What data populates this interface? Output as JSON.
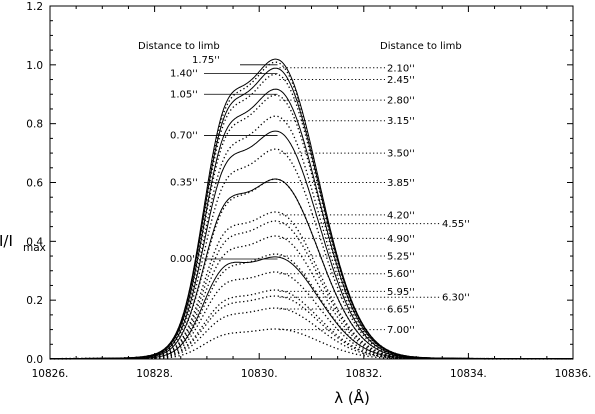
{
  "chart_data": {
    "type": "line",
    "title": "",
    "xlabel": "λ (Å)",
    "ylabel": "I/I",
    "ylabel_sub": "max",
    "xlim": [
      10826,
      10836
    ],
    "ylim": [
      0,
      1.2
    ],
    "xticks": [
      10826,
      10828,
      10830,
      10832,
      10834,
      10836
    ],
    "xtick_labels": [
      "10826.",
      "10828.",
      "10830.",
      "10832.",
      "10834.",
      "10836."
    ],
    "yticks": [
      0,
      0.2,
      0.4,
      0.6,
      0.8,
      1.0,
      1.2
    ],
    "ytick_labels": [
      "0.0",
      "0.2",
      "0.4",
      "0.6",
      "0.8",
      "1.0",
      "1.2"
    ],
    "grid": false,
    "legend": "none",
    "line_center": 10830.35,
    "line_width": 0.78,
    "blue_center": 10829.25,
    "blue_width": 0.38,
    "group_headers": [
      "Distance to limb",
      "Distance to limb"
    ],
    "series_solid": [
      {
        "label": "0.00''",
        "peak": 0.34,
        "blue_peak": 0.17
      },
      {
        "label": "0.35''",
        "peak": 0.6,
        "blue_peak": 0.27
      },
      {
        "label": "0.70''",
        "peak": 0.76,
        "blue_peak": 0.33
      },
      {
        "label": "1.05''",
        "peak": 0.9,
        "blue_peak": 0.38
      },
      {
        "label": "1.40''",
        "peak": 0.97,
        "blue_peak": 0.41
      },
      {
        "label": "1.75''",
        "peak": 1.0,
        "blue_peak": 0.43
      }
    ],
    "series_dotted": [
      {
        "label": "2.10''",
        "peak": 0.99,
        "blue_peak": 0.42
      },
      {
        "label": "2.45''",
        "peak": 0.95,
        "blue_peak": 0.4
      },
      {
        "label": "2.80''",
        "peak": 0.88,
        "blue_peak": 0.37
      },
      {
        "label": "3.15''",
        "peak": 0.81,
        "blue_peak": 0.34
      },
      {
        "label": "3.50''",
        "peak": 0.7,
        "blue_peak": 0.3
      },
      {
        "label": "3.85''",
        "peak": 0.6,
        "blue_peak": 0.26
      },
      {
        "label": "4.20''",
        "peak": 0.49,
        "blue_peak": 0.22
      },
      {
        "label": "4.55''",
        "peak": 0.46,
        "blue_peak": 0.2
      },
      {
        "label": "4.90''",
        "peak": 0.41,
        "blue_peak": 0.18
      },
      {
        "label": "5.25''",
        "peak": 0.35,
        "blue_peak": 0.15
      },
      {
        "label": "5.60''",
        "peak": 0.29,
        "blue_peak": 0.13
      },
      {
        "label": "5.95''",
        "peak": 0.23,
        "blue_peak": 0.1
      },
      {
        "label": "6.30''",
        "peak": 0.21,
        "blue_peak": 0.09
      },
      {
        "label": "6.65''",
        "peak": 0.17,
        "blue_peak": 0.07
      },
      {
        "label": "7.00''",
        "peak": 0.1,
        "blue_peak": 0.04
      }
    ]
  }
}
